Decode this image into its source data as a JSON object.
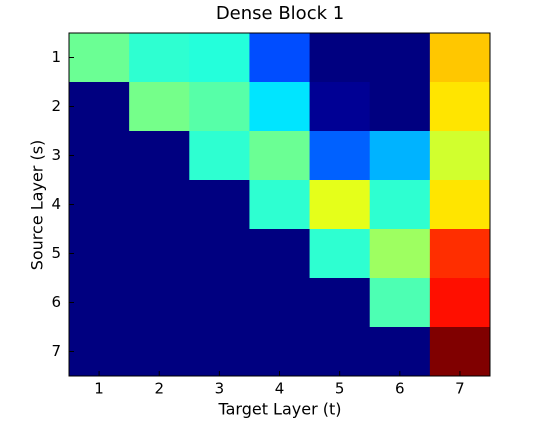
{
  "chart_data": {
    "type": "heatmap",
    "title": "Dense Block 1",
    "x_label": "Target Layer (t)",
    "y_label": "Source Layer (s)",
    "x": [
      1,
      2,
      3,
      4,
      5,
      6,
      7
    ],
    "y": [
      1,
      2,
      3,
      4,
      5,
      6,
      7
    ],
    "xlim": [
      0.5,
      7.5
    ],
    "ylim": [
      7.5,
      0.5
    ],
    "xticks": [
      1,
      2,
      3,
      4,
      5,
      6,
      7
    ],
    "yticks": [
      1,
      2,
      3,
      4,
      5,
      6,
      7
    ],
    "colormap": "jet",
    "clim": [
      0,
      1
    ],
    "values": [
      [
        0.48,
        0.42,
        0.41,
        0.2,
        0,
        0,
        0.68
      ],
      [
        0,
        0.49,
        0.46,
        0.35,
        0.02,
        0,
        0.65
      ],
      [
        0,
        0,
        0.42,
        0.48,
        0.22,
        0.3,
        0.58
      ],
      [
        0,
        0,
        0,
        0.42,
        0.6,
        0.42,
        0.65
      ],
      [
        0,
        0,
        0,
        0,
        0.42,
        0.53,
        0.83
      ],
      [
        0,
        0,
        0,
        0,
        0,
        0.45,
        0.86
      ],
      [
        0,
        0,
        0,
        0,
        0,
        0,
        1
      ]
    ]
  }
}
